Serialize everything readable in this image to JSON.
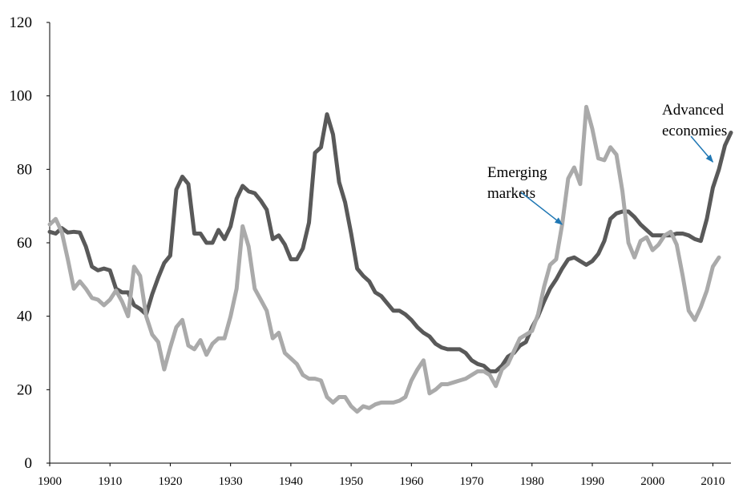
{
  "chart_data": {
    "type": "line",
    "title": "",
    "xlabel": "",
    "ylabel": "",
    "xlim": [
      1900,
      2013
    ],
    "ylim": [
      0,
      120
    ],
    "grid": false,
    "y_ticks": [
      0,
      20,
      40,
      60,
      80,
      100,
      120
    ],
    "x_ticks": [
      1900,
      1910,
      1920,
      1930,
      1940,
      1950,
      1960,
      1970,
      1980,
      1990,
      2000,
      2010
    ],
    "annotations": [
      {
        "id": "annot-advanced",
        "lines": [
          "Advanced",
          "economies"
        ],
        "color": "#1f77b4",
        "series": "Advanced economies",
        "point_year": 2010,
        "point_value": 82
      },
      {
        "id": "annot-emerging",
        "lines": [
          "Emerging",
          "markets"
        ],
        "color": "#1f77b4",
        "series": "Emerging markets",
        "point_year": 1985,
        "point_value": 65
      }
    ],
    "series": [
      {
        "key": "advanced",
        "color": "#595959",
        "points": [
          [
            1900,
            63
          ],
          [
            1901,
            62.5
          ],
          [
            1902,
            64
          ],
          [
            1903,
            62.8
          ],
          [
            1904,
            63
          ],
          [
            1905,
            62.8
          ],
          [
            1906,
            59
          ],
          [
            1907,
            53.5
          ],
          [
            1908,
            52.5
          ],
          [
            1909,
            53
          ],
          [
            1910,
            52.5
          ],
          [
            1911,
            47.5
          ],
          [
            1912,
            46.5
          ],
          [
            1913,
            46.5
          ],
          [
            1914,
            43
          ],
          [
            1915,
            42
          ],
          [
            1916,
            40.5
          ],
          [
            1917,
            46
          ],
          [
            1918,
            50.5
          ],
          [
            1919,
            54.5
          ],
          [
            1920,
            56.5
          ],
          [
            1921,
            74.5
          ],
          [
            1922,
            78
          ],
          [
            1923,
            76
          ],
          [
            1924,
            62.5
          ],
          [
            1925,
            62.5
          ],
          [
            1926,
            60
          ],
          [
            1927,
            60
          ],
          [
            1928,
            63.5
          ],
          [
            1929,
            61
          ],
          [
            1930,
            64.5
          ],
          [
            1931,
            72
          ],
          [
            1932,
            75.5
          ],
          [
            1933,
            74
          ],
          [
            1934,
            73.5
          ],
          [
            1935,
            71.5
          ],
          [
            1936,
            69
          ],
          [
            1937,
            61
          ],
          [
            1938,
            62
          ],
          [
            1939,
            59.5
          ],
          [
            1940,
            55.5
          ],
          [
            1941,
            55.5
          ],
          [
            1942,
            58.5
          ],
          [
            1943,
            65.5
          ],
          [
            1944,
            84.5
          ],
          [
            1945,
            86
          ],
          [
            1946,
            95
          ],
          [
            1947,
            89.5
          ],
          [
            1948,
            76.5
          ],
          [
            1949,
            71
          ],
          [
            1950,
            62.5
          ],
          [
            1951,
            53
          ],
          [
            1952,
            51
          ],
          [
            1953,
            49.5
          ],
          [
            1954,
            46.5
          ],
          [
            1955,
            45.5
          ],
          [
            1956,
            43.5
          ],
          [
            1957,
            41.5
          ],
          [
            1958,
            41.5
          ],
          [
            1959,
            40.5
          ],
          [
            1960,
            39
          ],
          [
            1961,
            37
          ],
          [
            1962,
            35.5
          ],
          [
            1963,
            34.5
          ],
          [
            1964,
            32.5
          ],
          [
            1965,
            31.5
          ],
          [
            1966,
            31
          ],
          [
            1967,
            31
          ],
          [
            1968,
            31
          ],
          [
            1969,
            30
          ],
          [
            1970,
            28
          ],
          [
            1971,
            27
          ],
          [
            1972,
            26.5
          ],
          [
            1973,
            25
          ],
          [
            1974,
            25
          ],
          [
            1975,
            26.5
          ],
          [
            1976,
            29
          ],
          [
            1977,
            30
          ],
          [
            1978,
            32
          ],
          [
            1979,
            33
          ],
          [
            1980,
            37
          ],
          [
            1981,
            40
          ],
          [
            1982,
            44
          ],
          [
            1983,
            47.5
          ],
          [
            1984,
            50
          ],
          [
            1985,
            53
          ],
          [
            1986,
            55.5
          ],
          [
            1987,
            56
          ],
          [
            1988,
            55
          ],
          [
            1989,
            54
          ],
          [
            1990,
            55
          ],
          [
            1991,
            57
          ],
          [
            1992,
            60.5
          ],
          [
            1993,
            66.5
          ],
          [
            1994,
            68
          ],
          [
            1995,
            68.5
          ],
          [
            1996,
            68.5
          ],
          [
            1997,
            67
          ],
          [
            1998,
            65
          ],
          [
            1999,
            63.5
          ],
          [
            2000,
            62
          ],
          [
            2001,
            62
          ],
          [
            2002,
            62
          ],
          [
            2003,
            62
          ],
          [
            2004,
            62.5
          ],
          [
            2005,
            62.5
          ],
          [
            2006,
            62
          ],
          [
            2007,
            61
          ],
          [
            2008,
            60.5
          ],
          [
            2009,
            66.5
          ],
          [
            2010,
            75
          ],
          [
            2011,
            80
          ],
          [
            2012,
            86.5
          ],
          [
            2013,
            90
          ]
        ]
      },
      {
        "key": "emerging",
        "color": "#aaaaaa",
        "points": [
          [
            1900,
            65
          ],
          [
            1901,
            66.5
          ],
          [
            1902,
            63
          ],
          [
            1903,
            55.5
          ],
          [
            1904,
            47.5
          ],
          [
            1905,
            49.5
          ],
          [
            1906,
            47.5
          ],
          [
            1907,
            45
          ],
          [
            1908,
            44.5
          ],
          [
            1909,
            43
          ],
          [
            1910,
            44.5
          ],
          [
            1911,
            47
          ],
          [
            1912,
            44
          ],
          [
            1913,
            40
          ],
          [
            1914,
            53.5
          ],
          [
            1915,
            51
          ],
          [
            1916,
            40
          ],
          [
            1917,
            35
          ],
          [
            1918,
            33
          ],
          [
            1919,
            25.5
          ],
          [
            1920,
            31.5
          ],
          [
            1921,
            37
          ],
          [
            1922,
            39
          ],
          [
            1923,
            32
          ],
          [
            1924,
            31
          ],
          [
            1925,
            33.5
          ],
          [
            1926,
            29.5
          ],
          [
            1927,
            32.5
          ],
          [
            1928,
            34
          ],
          [
            1929,
            34
          ],
          [
            1930,
            40
          ],
          [
            1931,
            47.5
          ],
          [
            1932,
            64.5
          ],
          [
            1933,
            59
          ],
          [
            1934,
            47.5
          ],
          [
            1935,
            44.5
          ],
          [
            1936,
            41.5
          ],
          [
            1937,
            34
          ],
          [
            1938,
            35.5
          ],
          [
            1939,
            30
          ],
          [
            1940,
            28.5
          ],
          [
            1941,
            27
          ],
          [
            1942,
            24
          ],
          [
            1943,
            23
          ],
          [
            1944,
            23
          ],
          [
            1945,
            22.5
          ],
          [
            1946,
            18
          ],
          [
            1947,
            16.5
          ],
          [
            1948,
            18
          ],
          [
            1949,
            18
          ],
          [
            1950,
            15.5
          ],
          [
            1951,
            14
          ],
          [
            1952,
            15.5
          ],
          [
            1953,
            15
          ],
          [
            1954,
            16
          ],
          [
            1955,
            16.5
          ],
          [
            1956,
            16.5
          ],
          [
            1957,
            16.5
          ],
          [
            1958,
            17
          ],
          [
            1959,
            18
          ],
          [
            1960,
            22.5
          ],
          [
            1961,
            25.5
          ],
          [
            1962,
            28
          ],
          [
            1963,
            19
          ],
          [
            1964,
            20
          ],
          [
            1965,
            21.5
          ],
          [
            1966,
            21.5
          ],
          [
            1967,
            22
          ],
          [
            1968,
            22.5
          ],
          [
            1969,
            23
          ],
          [
            1970,
            24
          ],
          [
            1971,
            25
          ],
          [
            1972,
            25
          ],
          [
            1973,
            24
          ],
          [
            1974,
            21
          ],
          [
            1975,
            25.5
          ],
          [
            1976,
            27
          ],
          [
            1977,
            30.5
          ],
          [
            1978,
            34
          ],
          [
            1979,
            35
          ],
          [
            1980,
            36
          ],
          [
            1981,
            40.5
          ],
          [
            1982,
            48
          ],
          [
            1983,
            54
          ],
          [
            1984,
            55.5
          ],
          [
            1985,
            65
          ],
          [
            1986,
            77.5
          ],
          [
            1987,
            80.5
          ],
          [
            1988,
            76
          ],
          [
            1989,
            97
          ],
          [
            1990,
            91
          ],
          [
            1991,
            83
          ],
          [
            1992,
            82.5
          ],
          [
            1993,
            86
          ],
          [
            1994,
            84
          ],
          [
            1995,
            74
          ],
          [
            1996,
            60
          ],
          [
            1997,
            56
          ],
          [
            1998,
            60.5
          ],
          [
            1999,
            61.5
          ],
          [
            2000,
            58
          ],
          [
            2001,
            59.5
          ],
          [
            2002,
            62
          ],
          [
            2003,
            63
          ],
          [
            2004,
            59.5
          ],
          [
            2005,
            51
          ],
          [
            2006,
            41.5
          ],
          [
            2007,
            39
          ],
          [
            2008,
            42.5
          ],
          [
            2009,
            47
          ],
          [
            2010,
            53.5
          ],
          [
            2011,
            56
          ]
        ]
      }
    ]
  }
}
